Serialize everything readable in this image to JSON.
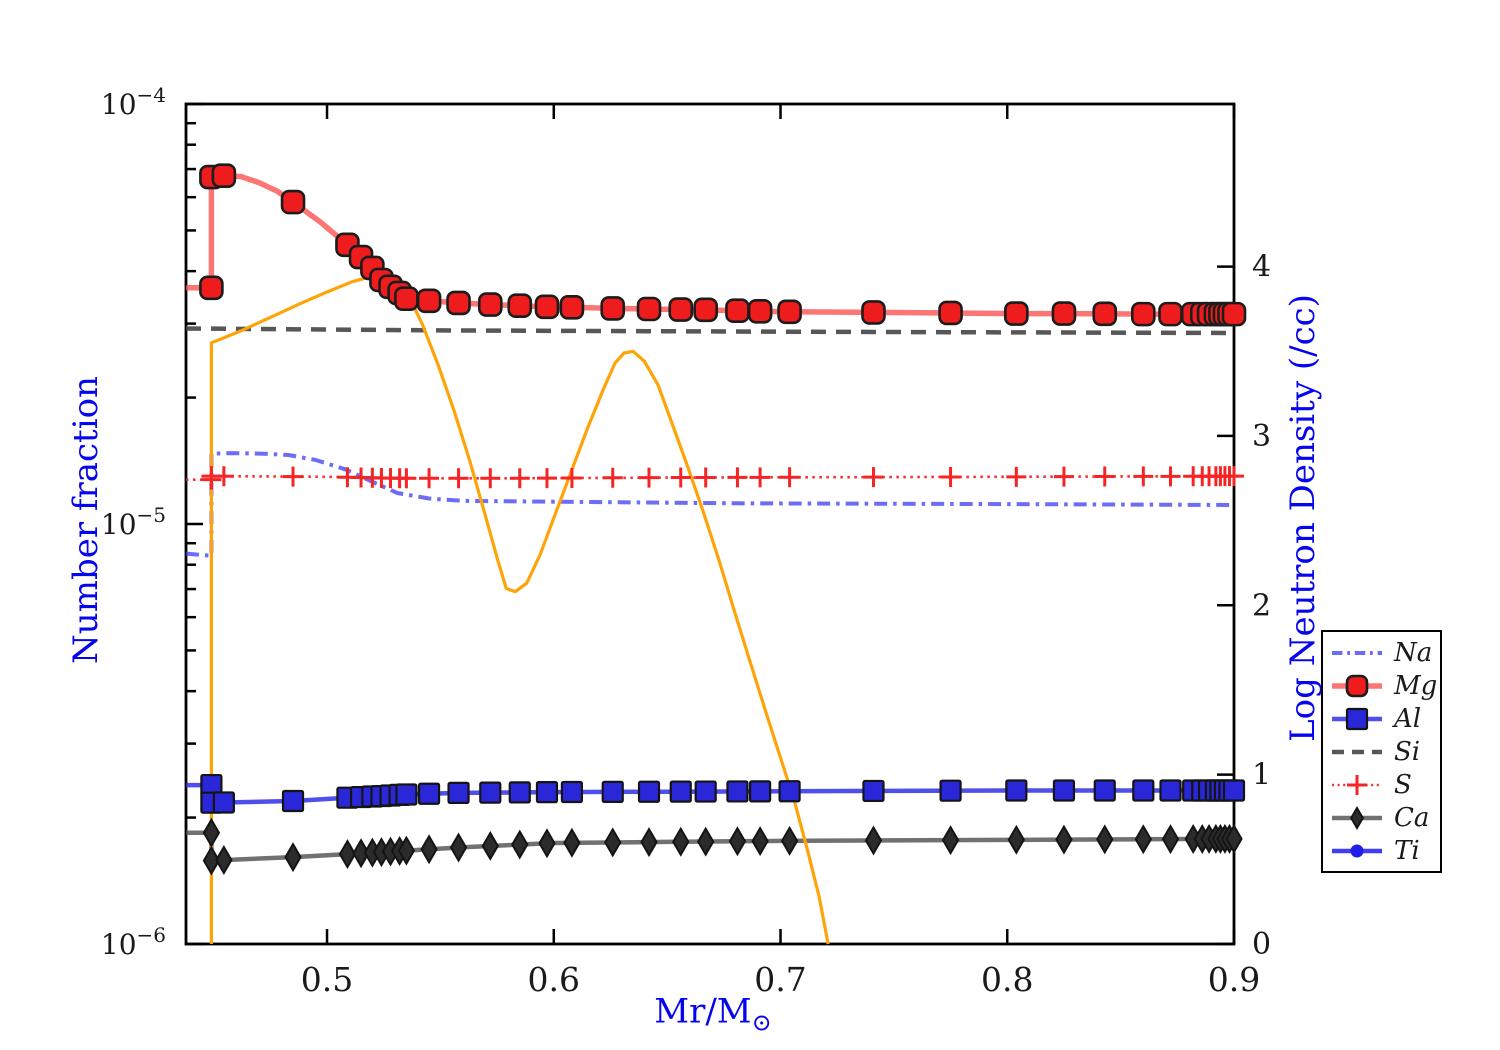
{
  "figure": {
    "background": "#ffffff",
    "frame_color": "#000000",
    "tick_label_color": "#1a1a1a",
    "axis_label_color": "#0505ee"
  },
  "chart_data": {
    "type": "line",
    "title": "",
    "x_axis": {
      "label_prefix": "Mr/M",
      "label_sub": "⊙",
      "lim": [
        0.4378,
        0.9
      ],
      "ticks": [
        0.5,
        0.6,
        0.7,
        0.8,
        0.9
      ],
      "tick_labels": [
        "0.5",
        "0.6",
        "0.7",
        "0.8",
        "0.9"
      ]
    },
    "y_axis_left": {
      "label": "Number fraction",
      "scale": "log",
      "lim": [
        1e-06,
        0.0001
      ],
      "major_ticks": [
        0.0001,
        1e-05,
        1e-06
      ],
      "tick_exponents": [
        "−4",
        "−5",
        "−6"
      ],
      "minor_mantissas": [
        2,
        3,
        4,
        5,
        6,
        7,
        8,
        9
      ]
    },
    "y_axis_right": {
      "label": "Log Neutron Density (/cc)",
      "scale": "linear",
      "lim": [
        0,
        4.96
      ],
      "ticks": [
        0,
        1,
        2,
        3,
        4
      ],
      "tick_labels": [
        "0",
        "1",
        "2",
        "3",
        "4"
      ]
    },
    "marker_grid_x": [
      0.4545,
      0.485,
      0.509,
      0.515,
      0.52,
      0.524,
      0.528,
      0.532,
      0.535,
      0.545,
      0.558,
      0.572,
      0.585,
      0.597,
      0.608,
      0.626,
      0.642,
      0.656,
      0.667,
      0.681,
      0.691,
      0.704,
      0.741,
      0.775,
      0.804,
      0.825,
      0.843,
      0.86,
      0.872,
      0.882,
      0.886,
      0.889,
      0.892,
      0.894,
      0.896,
      0.898,
      0.9
    ],
    "series": [
      {
        "name": "Si",
        "axis": "left",
        "color": "#454545",
        "width": 4.5,
        "opacity": 0.9,
        "dash": [
          15,
          10
        ],
        "marker": null,
        "points": [
          [
            0.4378,
            2.92e-05
          ],
          [
            0.55,
            2.89e-05
          ],
          [
            0.7,
            2.87e-05
          ],
          [
            0.9,
            2.85e-05
          ]
        ]
      },
      {
        "name": "S",
        "axis": "left",
        "color": "#f62424",
        "width": 2.6,
        "opacity": 0.95,
        "dash": [
          2.5,
          4.5
        ],
        "marker": {
          "shape": "plus",
          "size": 10,
          "fill": "#f62424",
          "stroke": "#f62424",
          "stroke_width": 3
        },
        "use_marker_grid": true,
        "extra_markers": [
          [
            0.449,
            1.275e-05
          ],
          [
            0.449,
            1.3e-05
          ]
        ],
        "points": [
          [
            0.4378,
            1.275e-05
          ],
          [
            0.449,
            1.275e-05
          ],
          [
            0.449,
            1.3e-05
          ],
          [
            0.5,
            1.295e-05
          ],
          [
            0.53,
            1.285e-05
          ],
          [
            0.58,
            1.285e-05
          ],
          [
            0.65,
            1.29e-05
          ],
          [
            0.8,
            1.295e-05
          ],
          [
            0.9,
            1.3e-05
          ]
        ]
      },
      {
        "name": "Na",
        "axis": "left",
        "color": "#4343f5",
        "width": 4,
        "opacity": 0.78,
        "dash": [
          13,
          6,
          3.5,
          6
        ],
        "marker": null,
        "points": [
          [
            0.4378,
            8.5e-06
          ],
          [
            0.449,
            8.4e-06
          ],
          [
            0.449,
            1.47e-05
          ],
          [
            0.458,
            1.475e-05
          ],
          [
            0.472,
            1.47e-05
          ],
          [
            0.483,
            1.46e-05
          ],
          [
            0.495,
            1.42e-05
          ],
          [
            0.508,
            1.35e-05
          ],
          [
            0.52,
            1.26e-05
          ],
          [
            0.531,
            1.185e-05
          ],
          [
            0.545,
            1.15e-05
          ],
          [
            0.56,
            1.135e-05
          ],
          [
            0.6,
            1.13e-05
          ],
          [
            0.68,
            1.12e-05
          ],
          [
            0.8,
            1.115e-05
          ],
          [
            0.9,
            1.11e-05
          ]
        ]
      },
      {
        "name": "Ca",
        "axis": "left",
        "color": "#4d4d4d",
        "width": 4.5,
        "opacity": 0.8,
        "dash": null,
        "marker": {
          "shape": "diamond",
          "size": 13,
          "fill": "#2b2b2b",
          "stroke": "#141414",
          "stroke_width": 2
        },
        "use_marker_grid": true,
        "extra_markers": [
          [
            0.449,
            1.84e-06
          ],
          [
            0.449,
            1.58e-06
          ]
        ],
        "points": [
          [
            0.4378,
            1.84e-06
          ],
          [
            0.449,
            1.84e-06
          ],
          [
            0.449,
            1.58e-06
          ],
          [
            0.485,
            1.61e-06
          ],
          [
            0.52,
            1.65e-06
          ],
          [
            0.56,
            1.7e-06
          ],
          [
            0.6,
            1.74e-06
          ],
          [
            0.65,
            1.75e-06
          ],
          [
            0.7,
            1.76e-06
          ],
          [
            0.8,
            1.77e-06
          ],
          [
            0.9,
            1.78e-06
          ]
        ]
      },
      {
        "name": "Al",
        "axis": "left",
        "color": "#3030e8",
        "width": 4.5,
        "opacity": 0.85,
        "dash": null,
        "marker": {
          "shape": "square",
          "size": 10,
          "fill": "#2a27d8",
          "stroke": "#141414",
          "stroke_width": 2.2
        },
        "use_marker_grid": true,
        "extra_markers": [
          [
            0.449,
            2.39e-06
          ],
          [
            0.449,
            2.17e-06
          ]
        ],
        "points": [
          [
            0.4378,
            2.39e-06
          ],
          [
            0.449,
            2.39e-06
          ],
          [
            0.449,
            2.17e-06
          ],
          [
            0.47,
            2.18e-06
          ],
          [
            0.485,
            2.19e-06
          ],
          [
            0.509,
            2.23e-06
          ],
          [
            0.524,
            2.25e-06
          ],
          [
            0.535,
            2.27e-06
          ],
          [
            0.558,
            2.29e-06
          ],
          [
            0.6,
            2.3e-06
          ],
          [
            0.7,
            2.31e-06
          ],
          [
            0.8,
            2.32e-06
          ],
          [
            0.9,
            2.32e-06
          ]
        ]
      },
      {
        "name": "neutron_density",
        "axis": "right",
        "color": "#ffa408",
        "width": 3.2,
        "opacity": 1,
        "dash": null,
        "marker": null,
        "points": [
          [
            0.449,
            0.0
          ],
          [
            0.449,
            3.55
          ],
          [
            0.462,
            3.62
          ],
          [
            0.475,
            3.7
          ],
          [
            0.488,
            3.78
          ],
          [
            0.5,
            3.85
          ],
          [
            0.511,
            3.91
          ],
          [
            0.522,
            3.95
          ],
          [
            0.53,
            3.92
          ],
          [
            0.533,
            3.87
          ],
          [
            0.537,
            3.8
          ],
          [
            0.542,
            3.66
          ],
          [
            0.549,
            3.42
          ],
          [
            0.556,
            3.15
          ],
          [
            0.563,
            2.85
          ],
          [
            0.57,
            2.52
          ],
          [
            0.575,
            2.28
          ],
          [
            0.579,
            2.1
          ],
          [
            0.583,
            2.08
          ],
          [
            0.588,
            2.13
          ],
          [
            0.594,
            2.3
          ],
          [
            0.601,
            2.55
          ],
          [
            0.608,
            2.8
          ],
          [
            0.615,
            3.05
          ],
          [
            0.622,
            3.28
          ],
          [
            0.627,
            3.43
          ],
          [
            0.631,
            3.49
          ],
          [
            0.635,
            3.5
          ],
          [
            0.64,
            3.44
          ],
          [
            0.646,
            3.3
          ],
          [
            0.652,
            3.08
          ],
          [
            0.659,
            2.82
          ],
          [
            0.666,
            2.55
          ],
          [
            0.673,
            2.26
          ],
          [
            0.68,
            1.95
          ],
          [
            0.687,
            1.65
          ],
          [
            0.694,
            1.35
          ],
          [
            0.7,
            1.1
          ],
          [
            0.706,
            0.85
          ],
          [
            0.712,
            0.55
          ],
          [
            0.717,
            0.28
          ],
          [
            0.721,
            0.0
          ]
        ]
      },
      {
        "name": "Mg",
        "axis": "left",
        "color": "#fb5050",
        "width": 5.5,
        "opacity": 0.78,
        "dash": null,
        "marker": {
          "shape": "rounded-square",
          "size": 11,
          "fill": "#ee1c1c",
          "stroke": "#1c1c1c",
          "stroke_width": 2.6
        },
        "use_marker_grid": true,
        "extra_markers": [
          [
            0.449,
            3.65e-05
          ],
          [
            0.449,
            6.7e-05
          ]
        ],
        "points": [
          [
            0.4378,
            3.65e-05
          ],
          [
            0.449,
            3.65e-05
          ],
          [
            0.449,
            6.7e-05
          ],
          [
            0.4545,
            6.75e-05
          ],
          [
            0.462,
            6.72e-05
          ],
          [
            0.47,
            6.5e-05
          ],
          [
            0.478,
            6.2e-05
          ],
          [
            0.485,
            5.84e-05
          ],
          [
            0.497,
            5.24e-05
          ],
          [
            0.509,
            4.62e-05
          ],
          [
            0.515,
            4.32e-05
          ],
          [
            0.52,
            4.07e-05
          ],
          [
            0.524,
            3.81e-05
          ],
          [
            0.528,
            3.67e-05
          ],
          [
            0.532,
            3.55e-05
          ],
          [
            0.535,
            3.44e-05
          ],
          [
            0.545,
            3.4e-05
          ],
          [
            0.558,
            3.36e-05
          ],
          [
            0.572,
            3.33e-05
          ],
          [
            0.585,
            3.31e-05
          ],
          [
            0.597,
            3.29e-05
          ],
          [
            0.608,
            3.28e-05
          ],
          [
            0.626,
            3.26e-05
          ],
          [
            0.642,
            3.25e-05
          ],
          [
            0.656,
            3.24e-05
          ],
          [
            0.667,
            3.235e-05
          ],
          [
            0.681,
            3.22e-05
          ],
          [
            0.691,
            3.21e-05
          ],
          [
            0.704,
            3.2e-05
          ],
          [
            0.741,
            3.19e-05
          ],
          [
            0.775,
            3.18e-05
          ],
          [
            0.804,
            3.17e-05
          ],
          [
            0.825,
            3.17e-05
          ],
          [
            0.843,
            3.165e-05
          ],
          [
            0.86,
            3.16e-05
          ],
          [
            0.872,
            3.16e-05
          ],
          [
            0.9,
            3.16e-05
          ]
        ]
      },
      {
        "name": "Ti",
        "axis": "left",
        "color": "#2a2af0",
        "width": 4.5,
        "opacity": 0.9,
        "dash": null,
        "marker": {
          "shape": "circle",
          "size": 6,
          "fill": "#1f1fe8",
          "stroke": "#1f1fe8",
          "stroke_width": 1
        },
        "points": []
      }
    ],
    "legend": {
      "items": [
        {
          "label": "Na",
          "series": "Na"
        },
        {
          "label": "Mg",
          "series": "Mg"
        },
        {
          "label": "Al",
          "series": "Al"
        },
        {
          "label": "Si",
          "series": "Si"
        },
        {
          "label": "S",
          "series": "S"
        },
        {
          "label": "Ca",
          "series": "Ca"
        },
        {
          "label": "Ti",
          "series": "Ti"
        }
      ]
    }
  }
}
